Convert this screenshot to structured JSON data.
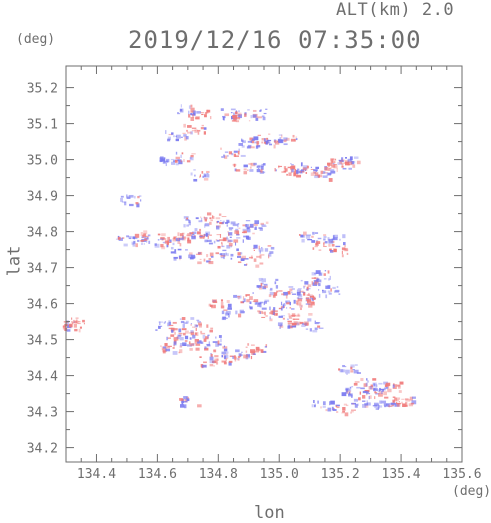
{
  "header": {
    "altitude": "ALT(km) 2.0",
    "datetime": "2019/12/16 07:35:00",
    "lat_unit": "(deg)",
    "lon_unit": "(deg)"
  },
  "chart_data": {
    "type": "heatmap",
    "title": "2019/12/16 07:35:00",
    "xlabel": "lon",
    "ylabel": "lat",
    "xlim": [
      134.3,
      135.6
    ],
    "ylim": [
      34.16,
      35.26
    ],
    "xticks": [
      "134.4",
      "134.6",
      "134.8",
      "135.0",
      "135.2",
      "135.4",
      "135.6"
    ],
    "yticks": [
      "34.2",
      "34.3",
      "34.4",
      "34.5",
      "34.6",
      "34.7",
      "34.8",
      "34.9",
      "35.0",
      "35.1",
      "35.2"
    ],
    "colors": {
      "positive": "#f07878",
      "negative": "#7878f0",
      "axis": "#6e6e6e"
    },
    "cells": [
      [
        134.32,
        34.55,
        1
      ],
      [
        134.33,
        34.54,
        1
      ],
      [
        134.51,
        34.89,
        -1
      ],
      [
        134.5,
        34.78,
        -1
      ],
      [
        134.55,
        34.78,
        -1
      ],
      [
        134.58,
        34.79,
        1
      ],
      [
        134.62,
        34.77,
        -1
      ],
      [
        134.66,
        34.78,
        1
      ],
      [
        134.7,
        34.79,
        1
      ],
      [
        134.74,
        34.8,
        -1
      ],
      [
        134.78,
        34.78,
        1
      ],
      [
        134.82,
        34.77,
        1
      ],
      [
        134.86,
        34.79,
        -1
      ],
      [
        134.72,
        34.83,
        -1
      ],
      [
        134.78,
        34.84,
        1
      ],
      [
        134.82,
        34.82,
        -1
      ],
      [
        134.88,
        34.81,
        1
      ],
      [
        134.92,
        34.82,
        -1
      ],
      [
        134.68,
        34.74,
        -1
      ],
      [
        134.76,
        34.73,
        1
      ],
      [
        134.84,
        34.74,
        -1
      ],
      [
        134.9,
        34.72,
        1
      ],
      [
        134.94,
        34.75,
        -1
      ],
      [
        134.7,
        35.14,
        -1
      ],
      [
        134.74,
        35.13,
        1
      ],
      [
        134.66,
        35.07,
        -1
      ],
      [
        134.72,
        35.09,
        1
      ],
      [
        134.84,
        35.13,
        -1
      ],
      [
        134.88,
        35.12,
        1
      ],
      [
        134.92,
        35.13,
        -1
      ],
      [
        134.9,
        35.05,
        -1
      ],
      [
        134.94,
        35.06,
        1
      ],
      [
        134.98,
        35.05,
        -1
      ],
      [
        135.02,
        35.06,
        1
      ],
      [
        134.84,
        35.02,
        -1
      ],
      [
        134.88,
        34.98,
        1
      ],
      [
        134.96,
        34.98,
        -1
      ],
      [
        135.02,
        34.97,
        1
      ],
      [
        135.06,
        34.98,
        -1
      ],
      [
        135.1,
        34.97,
        1
      ],
      [
        135.14,
        34.96,
        -1
      ],
      [
        135.18,
        34.99,
        1
      ],
      [
        135.22,
        35.0,
        -1
      ],
      [
        135.2,
        34.99,
        1
      ],
      [
        134.64,
        35.0,
        -1
      ],
      [
        134.68,
        35.01,
        1
      ],
      [
        134.74,
        34.96,
        -1
      ],
      [
        135.1,
        34.79,
        -1
      ],
      [
        135.14,
        34.76,
        1
      ],
      [
        135.18,
        34.78,
        -1
      ],
      [
        135.2,
        34.75,
        1
      ],
      [
        134.96,
        34.66,
        -1
      ],
      [
        135.0,
        34.63,
        1
      ],
      [
        135.06,
        34.64,
        -1
      ],
      [
        135.1,
        34.66,
        1
      ],
      [
        135.14,
        34.68,
        -1
      ],
      [
        135.0,
        34.58,
        1
      ],
      [
        135.04,
        34.6,
        -1
      ],
      [
        135.08,
        34.61,
        1
      ],
      [
        135.12,
        34.62,
        1
      ],
      [
        135.16,
        34.64,
        -1
      ],
      [
        134.92,
        34.6,
        -1
      ],
      [
        134.96,
        34.57,
        1
      ],
      [
        135.02,
        34.55,
        -1
      ],
      [
        135.06,
        34.56,
        1
      ],
      [
        135.1,
        34.54,
        -1
      ],
      [
        134.8,
        34.6,
        1
      ],
      [
        134.84,
        34.57,
        -1
      ],
      [
        134.88,
        34.62,
        1
      ],
      [
        134.62,
        34.54,
        -1
      ],
      [
        134.66,
        34.52,
        1
      ],
      [
        134.7,
        34.55,
        -1
      ],
      [
        134.74,
        34.53,
        1
      ],
      [
        134.78,
        34.5,
        -1
      ],
      [
        134.64,
        34.48,
        1
      ],
      [
        134.68,
        34.5,
        -1
      ],
      [
        134.72,
        34.49,
        1
      ],
      [
        134.8,
        34.47,
        -1
      ],
      [
        134.84,
        34.45,
        1
      ],
      [
        134.88,
        34.46,
        -1
      ],
      [
        134.92,
        34.48,
        1
      ],
      [
        134.76,
        34.44,
        1
      ],
      [
        134.7,
        34.33,
        -1
      ],
      [
        135.14,
        34.32,
        -1
      ],
      [
        135.2,
        34.31,
        1
      ],
      [
        135.26,
        34.33,
        -1
      ],
      [
        135.3,
        34.35,
        1
      ],
      [
        135.34,
        34.32,
        -1
      ],
      [
        135.38,
        34.33,
        1
      ],
      [
        135.4,
        34.33,
        1
      ],
      [
        135.24,
        34.36,
        -1
      ],
      [
        135.28,
        34.38,
        1
      ],
      [
        135.32,
        34.37,
        -1
      ],
      [
        135.22,
        34.42,
        -1
      ],
      [
        135.36,
        34.37,
        1
      ]
    ]
  }
}
